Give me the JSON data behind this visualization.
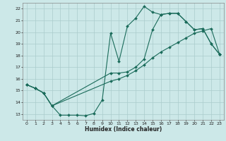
{
  "xlabel": "Humidex (Indice chaleur)",
  "background_color": "#cce8e8",
  "grid_color": "#aacccc",
  "line_color": "#1a6b5a",
  "xlim": [
    -0.5,
    23.5
  ],
  "ylim": [
    12.5,
    22.5
  ],
  "xticks": [
    0,
    1,
    2,
    3,
    4,
    5,
    6,
    7,
    8,
    9,
    10,
    11,
    12,
    13,
    14,
    15,
    16,
    17,
    18,
    19,
    20,
    21,
    22,
    23
  ],
  "yticks": [
    13,
    14,
    15,
    16,
    17,
    18,
    19,
    20,
    21,
    22
  ],
  "line1_x": [
    0,
    1,
    2,
    3,
    4,
    5,
    6,
    7,
    8,
    9,
    10,
    11,
    12,
    13,
    14,
    15,
    16,
    17,
    18,
    19,
    20,
    21,
    22,
    23
  ],
  "line1_y": [
    15.5,
    15.2,
    14.8,
    13.7,
    12.9,
    12.9,
    12.9,
    12.85,
    13.05,
    14.2,
    19.9,
    17.5,
    20.5,
    21.2,
    22.2,
    21.7,
    21.5,
    21.6,
    21.6,
    20.9,
    20.2,
    20.3,
    19.0,
    18.1
  ],
  "line2_x": [
    0,
    1,
    2,
    3,
    10,
    11,
    12,
    13,
    14,
    15,
    16,
    17,
    18,
    19,
    20,
    21,
    22,
    23
  ],
  "line2_y": [
    15.5,
    15.2,
    14.8,
    13.7,
    15.8,
    16.0,
    16.3,
    16.7,
    17.2,
    17.8,
    18.3,
    18.7,
    19.1,
    19.5,
    19.9,
    20.1,
    20.3,
    18.1
  ],
  "line3_x": [
    0,
    1,
    2,
    3,
    10,
    11,
    12,
    13,
    14,
    15,
    16,
    17,
    18,
    19,
    20,
    21,
    22,
    23
  ],
  "line3_y": [
    15.5,
    15.2,
    14.8,
    13.7,
    16.5,
    16.5,
    16.6,
    17.0,
    17.7,
    20.2,
    21.5,
    21.6,
    21.6,
    20.9,
    20.2,
    20.3,
    19.0,
    18.1
  ]
}
